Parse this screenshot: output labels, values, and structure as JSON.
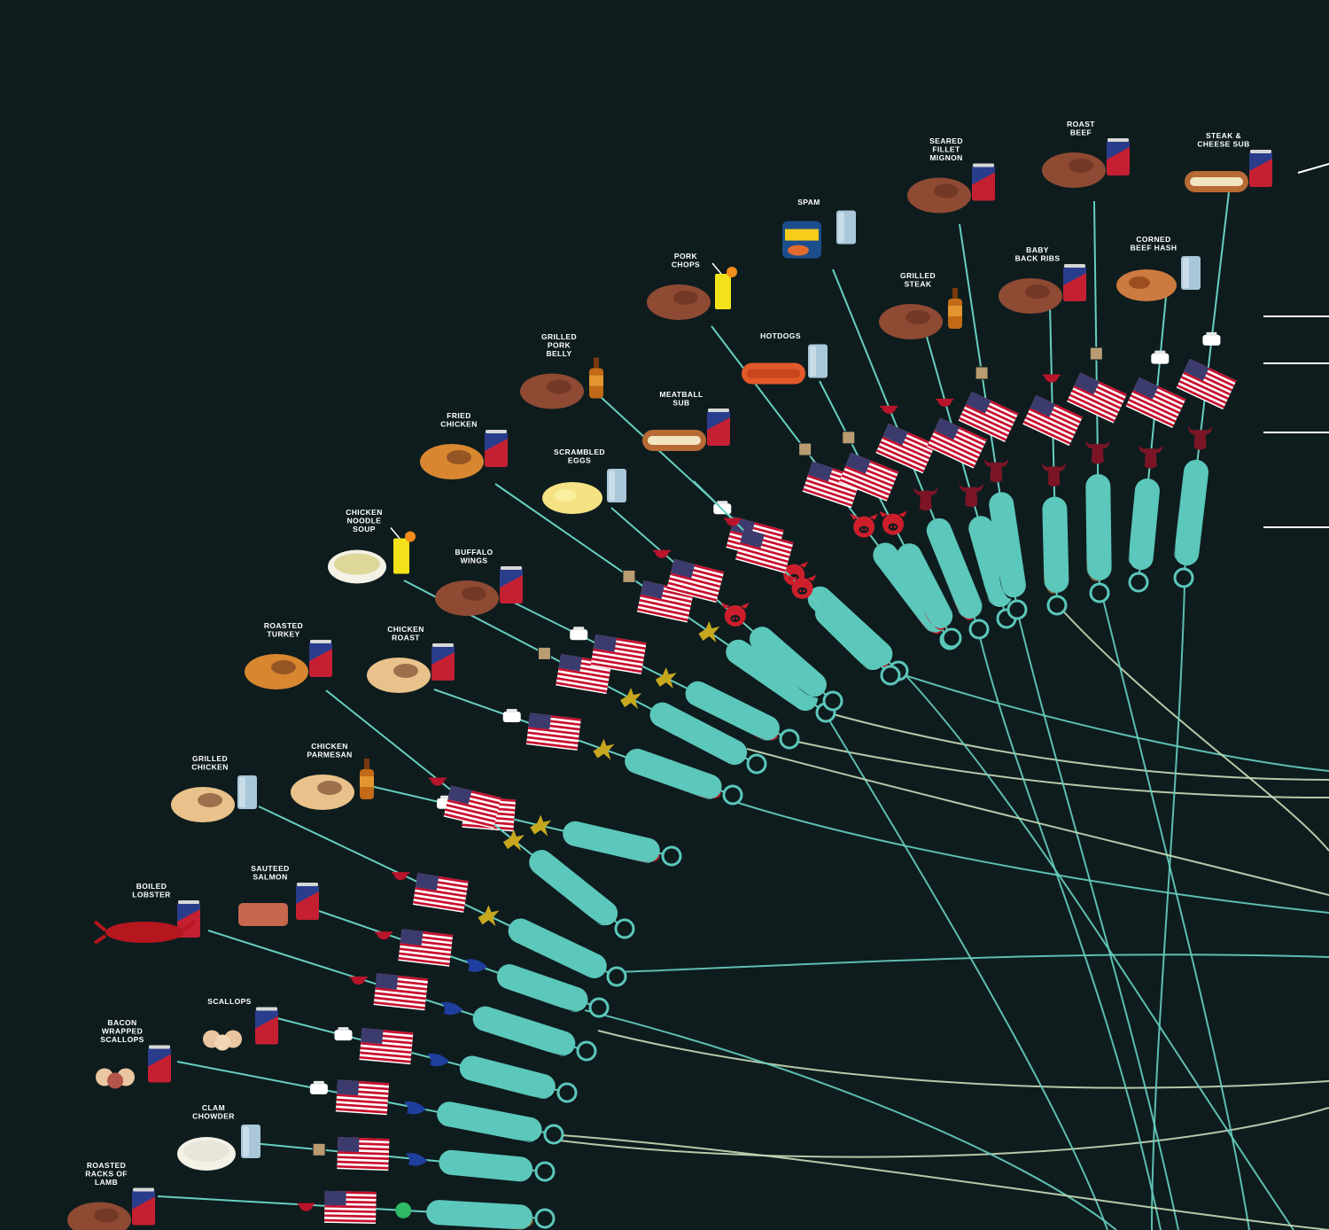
{
  "palette": {
    "background": "#0e1c1e",
    "line": "#67cfc0",
    "line_light": "#c9ddb8",
    "pod": "#5cc7bb",
    "can_red": "#c42032",
    "can_blue": "#2a3d8c",
    "flag_red": "#c8102e",
    "flag_blue": "#3c3b6e",
    "bull_red": "#7b1526",
    "pig_red": "#cc1f2b",
    "grill_red": "#b8142b",
    "eagle_gold": "#c6a71e",
    "fish_blue": "#1f3f9e",
    "green_dot": "#2fb865",
    "legend_line": "#ffffff"
  },
  "dishes": [
    {
      "id": "roasted-racks-of-lamb",
      "lines": [
        "ROASTED",
        "RACKS OF",
        "LAMB"
      ],
      "drink": "can",
      "marker": "grill",
      "symbol": "green-dot",
      "drip": "gravy",
      "icon": "lamb-icon"
    },
    {
      "id": "clam-chowder",
      "lines": [
        "CLAM",
        "CHOWDER"
      ],
      "drink": "water",
      "marker": "box",
      "symbol": "fish",
      "drip": "none",
      "icon": "chowder-bowl-icon"
    },
    {
      "id": "bacon-wrapped-scallops",
      "lines": [
        "BACON",
        "WRAPPED",
        "SCALLOPS"
      ],
      "drink": "can",
      "marker": "takeout",
      "symbol": "fish",
      "drip": "oil",
      "icon": "bacon-scallops-icon"
    },
    {
      "id": "scallops",
      "lines": [
        "SCALLOPS"
      ],
      "drink": "can",
      "marker": "takeout",
      "symbol": "fish",
      "drip": "oil",
      "icon": "scallops-icon"
    },
    {
      "id": "boiled-lobster",
      "lines": [
        "BOILED",
        "LOBSTER"
      ],
      "drink": "can",
      "marker": "grill",
      "symbol": "fish",
      "drip": "oil",
      "icon": "lobster-icon"
    },
    {
      "id": "sauteed-salmon",
      "lines": [
        "SAUTEED",
        "SALMON"
      ],
      "drink": "can",
      "marker": "grill",
      "symbol": "fish",
      "drip": "oil",
      "icon": "salmon-icon"
    },
    {
      "id": "grilled-chicken",
      "lines": [
        "GRILLED",
        "CHICKEN"
      ],
      "drink": "water",
      "marker": "grill",
      "symbol": "eagle",
      "drip": "none",
      "icon": "grilled-chicken-icon"
    },
    {
      "id": "chicken-parmesan",
      "lines": [
        "CHICKEN",
        "PARMESAN"
      ],
      "drink": "beer",
      "marker": "takeout",
      "symbol": "eagle",
      "drip": "blood",
      "icon": "chicken-parmesan-icon"
    },
    {
      "id": "roasted-turkey",
      "lines": [
        "ROASTED",
        "TURKEY"
      ],
      "drink": "can",
      "marker": "grill",
      "symbol": "eagle",
      "drip": "oil",
      "icon": "turkey-icon"
    },
    {
      "id": "chicken-roast",
      "lines": [
        "CHICKEN",
        "ROAST"
      ],
      "drink": "can",
      "marker": "takeout",
      "symbol": "eagle",
      "drip": "blood",
      "icon": "chicken-roast-icon"
    },
    {
      "id": "chicken-noodle-soup",
      "lines": [
        "CHICKEN",
        "NOODLE",
        "SOUP"
      ],
      "drink": "cocktail",
      "marker": "box",
      "symbol": "eagle",
      "drip": "none",
      "icon": "soup-bowl-icon"
    },
    {
      "id": "buffalo-wings",
      "lines": [
        "BUFFALO",
        "WINGS"
      ],
      "drink": "can",
      "marker": "takeout",
      "symbol": "eagle",
      "drip": "blood",
      "icon": "buffalo-wings-icon"
    },
    {
      "id": "fried-chicken",
      "lines": [
        "FRIED",
        "CHICKEN"
      ],
      "drink": "can",
      "marker": "box",
      "symbol": "eagle",
      "drip": "none",
      "icon": "fried-chicken-icon"
    },
    {
      "id": "scrambled-eggs",
      "lines": [
        "SCRAMBLED",
        "EGGS"
      ],
      "drink": "water",
      "marker": "grill",
      "symbol": "pig",
      "drip": "oil",
      "icon": "scrambled-eggs-icon"
    },
    {
      "id": "grilled-pork-belly",
      "lines": [
        "GRILLED",
        "PORK",
        "BELLY"
      ],
      "drink": "beer",
      "marker": "takeout",
      "symbol": "pig",
      "drip": "blood",
      "icon": "pork-belly-icon"
    },
    {
      "id": "meatball-sub",
      "lines": [
        "MEATBALL",
        "SUB"
      ],
      "drink": "can",
      "marker": "grill",
      "symbol": "pig",
      "drip": "oil",
      "icon": "meatball-sub-icon"
    },
    {
      "id": "pork-chops",
      "lines": [
        "PORK",
        "CHOPS"
      ],
      "drink": "cocktail",
      "marker": "box",
      "symbol": "pig",
      "drip": "blood",
      "icon": "pork-chops-icon"
    },
    {
      "id": "hotdogs",
      "lines": [
        "HOTDOGS"
      ],
      "drink": "water",
      "marker": "box",
      "symbol": "pig",
      "drip": "blood",
      "icon": "hotdogs-icon"
    },
    {
      "id": "spam",
      "lines": [
        "SPAM"
      ],
      "drink": "water",
      "marker": "grill",
      "symbol": "bull",
      "drip": "blood",
      "icon": "spam-can-icon"
    },
    {
      "id": "grilled-steak",
      "lines": [
        "GRILLED",
        "STEAK"
      ],
      "drink": "beer",
      "marker": "grill",
      "symbol": "bull",
      "drip": "oil",
      "icon": "steak-icon"
    },
    {
      "id": "seared-fillet-mignon",
      "lines": [
        "SEARED",
        "FILLET",
        "MIGNON"
      ],
      "drink": "can",
      "marker": "box",
      "symbol": "bull",
      "drip": "oil",
      "icon": "fillet-mignon-icon"
    },
    {
      "id": "baby-back-ribs",
      "lines": [
        "BABY",
        "BACK RIBS"
      ],
      "drink": "can",
      "marker": "grill",
      "symbol": "bull",
      "drip": "gravy",
      "icon": "ribs-icon"
    },
    {
      "id": "roast-beef",
      "lines": [
        "ROAST",
        "BEEF"
      ],
      "drink": "can",
      "marker": "box",
      "symbol": "bull",
      "drip": "gravy",
      "icon": "roast-beef-icon"
    },
    {
      "id": "corned-beef-hash",
      "lines": [
        "CORNED",
        "BEEF HASH"
      ],
      "drink": "water",
      "marker": "takeout",
      "symbol": "bull",
      "drip": "oil",
      "icon": "corned-beef-hash-icon"
    },
    {
      "id": "steak-cheese-sub",
      "lines": [
        "STEAK &",
        "CHEESE SUB"
      ],
      "drink": "can",
      "marker": "takeout",
      "symbol": "bull",
      "drip": "oil",
      "icon": "steak-sub-icon"
    }
  ]
}
